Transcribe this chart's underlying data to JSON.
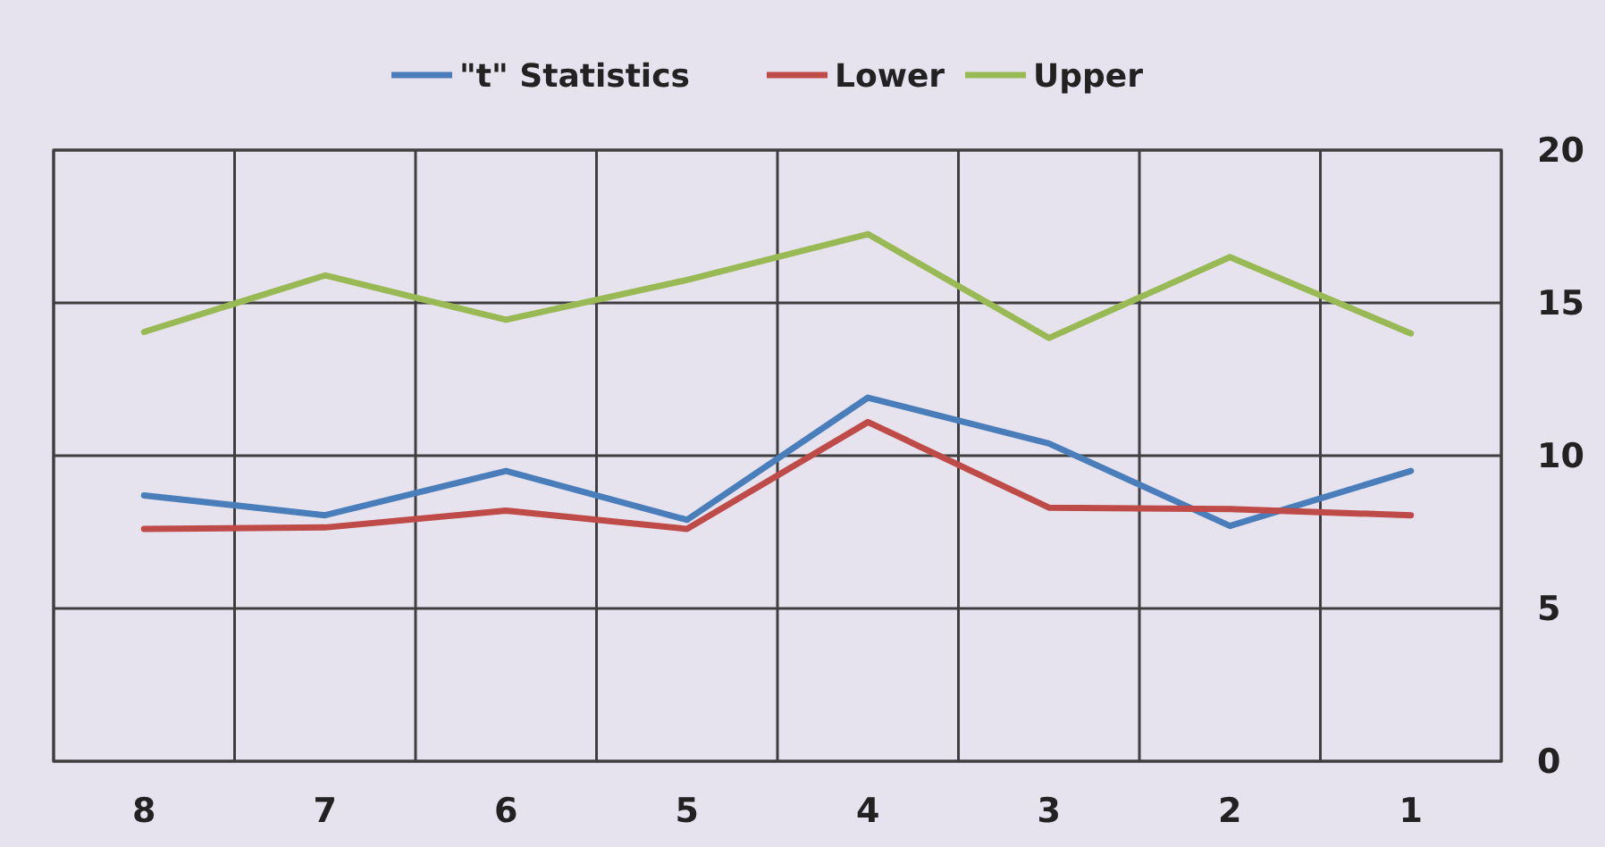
{
  "chart_data": {
    "type": "line",
    "categories": [
      "8",
      "7",
      "6",
      "5",
      "4",
      "3",
      "2",
      "1"
    ],
    "series": [
      {
        "name": "\"t\" Statistics",
        "color": "#4a7ebb",
        "values": [
          8.7,
          8.05,
          9.5,
          7.9,
          11.9,
          10.4,
          7.7,
          9.5
        ]
      },
      {
        "name": "Lower",
        "color": "#be4b48",
        "values": [
          7.6,
          7.65,
          8.2,
          7.6,
          11.1,
          8.3,
          8.25,
          8.05
        ]
      },
      {
        "name": "Upper",
        "color": "#98b954",
        "values": [
          14.05,
          15.9,
          14.45,
          15.75,
          17.25,
          13.85,
          16.5,
          14.0
        ]
      }
    ],
    "ylim": [
      0,
      20
    ],
    "yticks": [
      0,
      5,
      10,
      15,
      20
    ],
    "grid": true,
    "legend": "top",
    "line_style": "solid"
  }
}
